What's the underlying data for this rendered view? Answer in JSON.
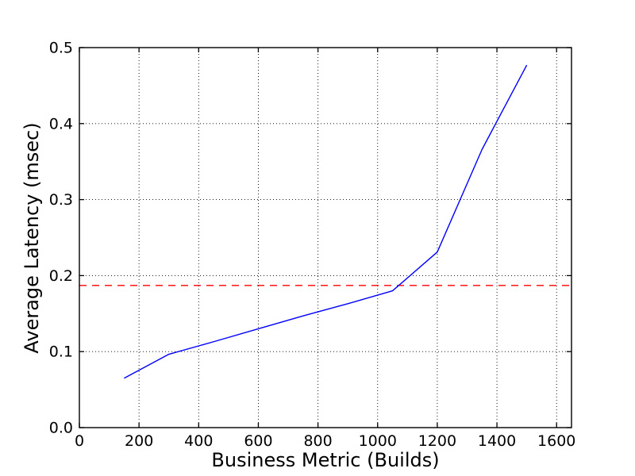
{
  "figure": {
    "background": "#ffffff",
    "plot_background": "#ffffff",
    "spine_color": "#000000"
  },
  "chart_data": {
    "type": "line",
    "title": "",
    "xlabel": "Business Metric (Builds)",
    "ylabel": "Average Latency (msec)",
    "xlim": [
      0,
      1650
    ],
    "ylim": [
      0.0,
      0.5
    ],
    "grid": true,
    "grid_style": "dotted",
    "grid_color": "#000000",
    "x_ticks": [
      0,
      200,
      400,
      600,
      800,
      1000,
      1200,
      1400,
      1600
    ],
    "x_tick_labels": [
      "0",
      "200",
      "400",
      "600",
      "800",
      "1000",
      "1200",
      "1400",
      "1600"
    ],
    "y_ticks": [
      0.0,
      0.1,
      0.2,
      0.3,
      0.4,
      0.5
    ],
    "y_tick_labels": [
      "0.0",
      "0.1",
      "0.2",
      "0.3",
      "0.4",
      "0.5"
    ],
    "series": [
      {
        "name": "average-latency-line",
        "color": "#0000ff",
        "line_style": "solid",
        "x": [
          150,
          300,
          450,
          600,
          750,
          900,
          1050,
          1200,
          1350,
          1500
        ],
        "y": [
          0.065,
          0.0965,
          0.113,
          0.13,
          0.147,
          0.163,
          0.18,
          0.231,
          0.366,
          0.477
        ]
      }
    ],
    "threshold_line": {
      "name": "latency-threshold-line",
      "value": 0.187,
      "color": "#ff0000",
      "line_style": "dashed"
    }
  }
}
